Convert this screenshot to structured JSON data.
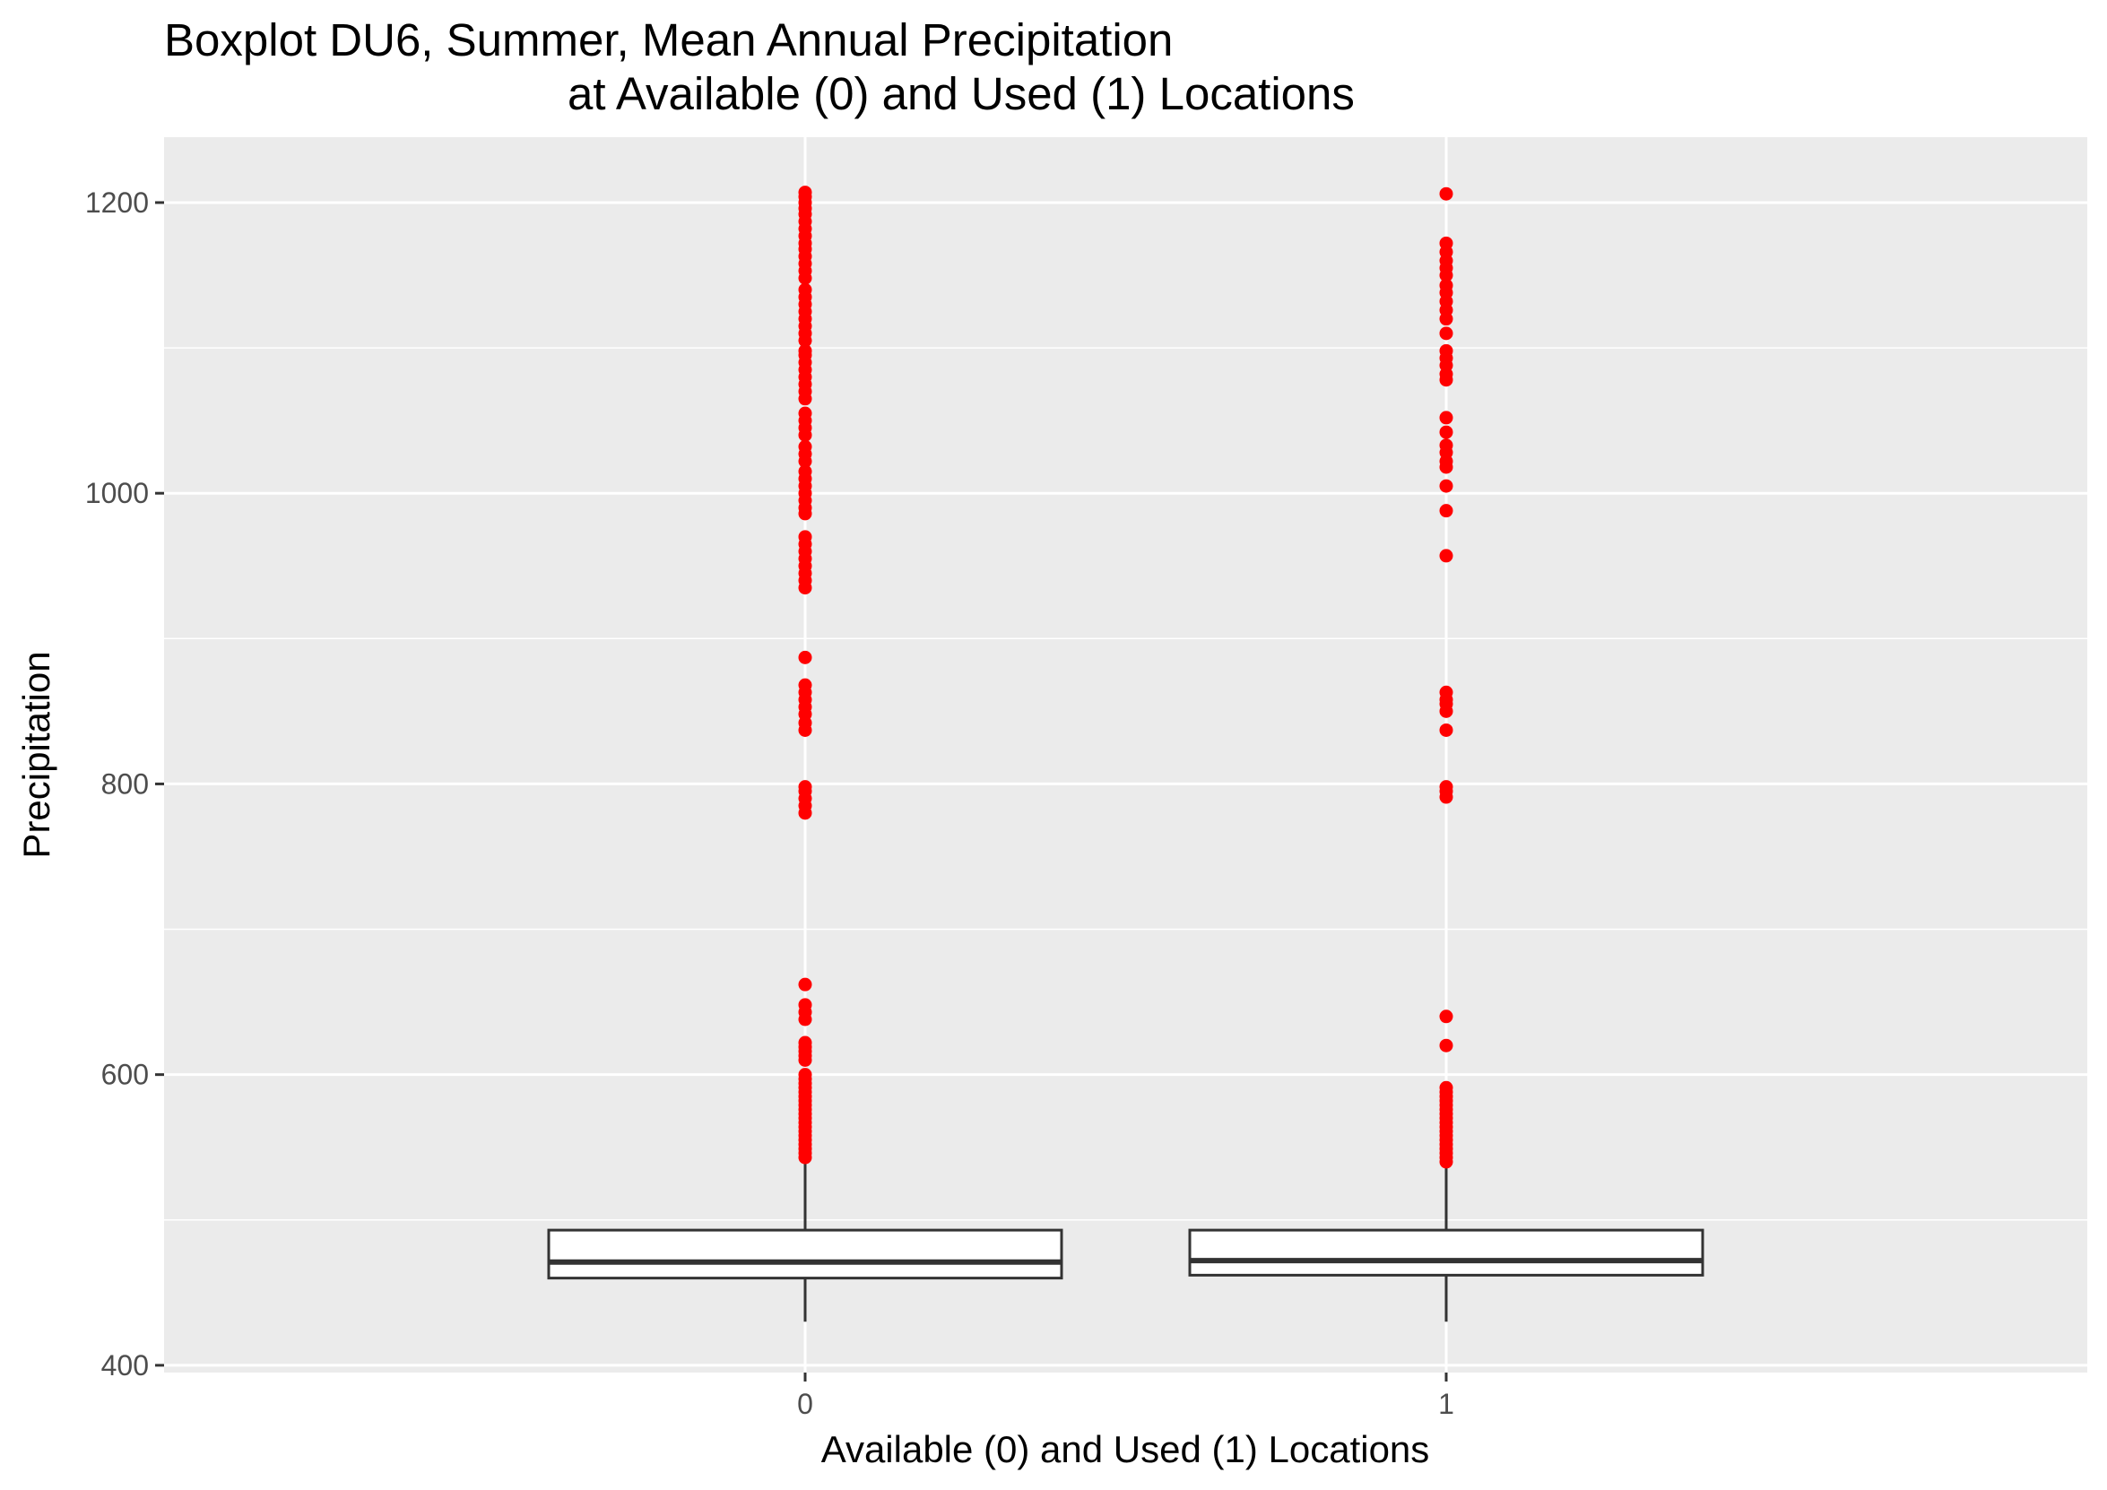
{
  "chart_data": {
    "type": "boxplot",
    "title": "Boxplot DU6, Summer, Mean Annual Precipitation",
    "subtitle": "at Available (0) and Used (1) Locations",
    "xlabel": "Available (0) and Used (1) Locations",
    "ylabel": "Precipitation",
    "categories": [
      "0",
      "1"
    ],
    "ylim": [
      395,
      1245
    ],
    "yticks": [
      400,
      600,
      800,
      1000,
      1200
    ],
    "grid": true,
    "colors": {
      "panel": "#ebebeb",
      "grid": "#ffffff",
      "outlier": "#ff0000",
      "box_fill": "#ffffff",
      "box_line": "#333333",
      "tick_label": "#4d4d4d"
    },
    "boxes": [
      {
        "category": "0",
        "lower_whisker": 430,
        "q1": 460,
        "median": 471,
        "q3": 493,
        "upper_whisker": 540,
        "outliers": [
          543,
          546,
          549,
          552,
          555,
          558,
          561,
          564,
          567,
          570,
          573,
          576,
          579,
          582,
          585,
          588,
          591,
          594,
          597,
          600,
          610,
          613,
          616,
          619,
          622,
          638,
          643,
          648,
          662,
          780,
          785,
          790,
          795,
          798,
          837,
          842,
          848,
          853,
          858,
          863,
          868,
          887,
          935,
          940,
          945,
          950,
          955,
          960,
          965,
          970,
          986,
          990,
          995,
          1000,
          1005,
          1010,
          1015,
          1022,
          1027,
          1032,
          1040,
          1045,
          1050,
          1055,
          1065,
          1070,
          1075,
          1080,
          1085,
          1090,
          1095,
          1098,
          1105,
          1110,
          1115,
          1120,
          1125,
          1130,
          1135,
          1140,
          1148,
          1153,
          1158,
          1163,
          1168,
          1172,
          1177,
          1182,
          1187,
          1192,
          1196,
          1200,
          1204,
          1207
        ]
      },
      {
        "category": "1",
        "lower_whisker": 430,
        "q1": 462,
        "median": 472,
        "q3": 493,
        "upper_whisker": 538,
        "outliers": [
          540,
          543,
          546,
          549,
          552,
          555,
          558,
          561,
          564,
          567,
          570,
          573,
          576,
          579,
          582,
          585,
          588,
          591,
          620,
          640,
          791,
          795,
          798,
          837,
          850,
          855,
          858,
          863,
          957,
          988,
          1005,
          1018,
          1022,
          1028,
          1033,
          1042,
          1052,
          1078,
          1082,
          1088,
          1093,
          1098,
          1110,
          1120,
          1126,
          1132,
          1138,
          1143,
          1150,
          1155,
          1160,
          1166,
          1172,
          1206
        ]
      }
    ]
  }
}
